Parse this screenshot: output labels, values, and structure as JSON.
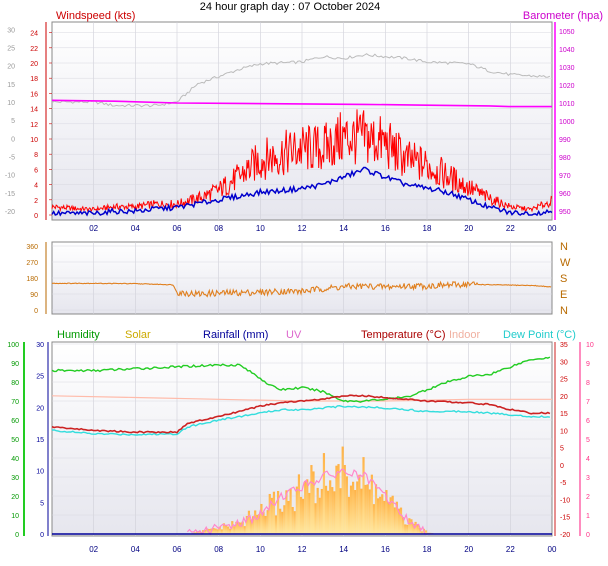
{
  "title": "24 hour graph day : 07 October 2024",
  "x_ticks": [
    "02",
    "04",
    "06",
    "08",
    "10",
    "12",
    "14",
    "16",
    "18",
    "20",
    "22",
    "00"
  ],
  "chart_data": [
    {
      "type": "line",
      "name": "wind-baro",
      "left_label": "Windspeed (kts)",
      "right_label": "Barometer (hpa)",
      "left_ticks_red": [
        "24",
        "22",
        "20",
        "18",
        "16",
        "14",
        "12",
        "10",
        "8",
        "6",
        "4",
        "2",
        "0"
      ],
      "left_ticks_gray": [
        "30",
        "25",
        "20",
        "15",
        "10",
        "5",
        "0",
        "-5",
        "-10",
        "-15",
        "-20"
      ],
      "right_ticks": [
        "1050",
        "1040",
        "1030",
        "1020",
        "1010",
        "1000",
        "990",
        "980",
        "970",
        "960",
        "950"
      ],
      "x_range_hours": [
        0,
        24
      ],
      "wind_ylim": [
        0,
        25
      ],
      "baro_ylim": [
        945,
        1055
      ],
      "gray_ylim": [
        -22.5,
        32
      ],
      "baro_hpa": [
        [
          0,
          1011.5
        ],
        [
          3,
          1011
        ],
        [
          6,
          1010
        ],
        [
          9,
          1009.8
        ],
        [
          12,
          1009.5
        ],
        [
          15,
          1009.2
        ],
        [
          18,
          1008.8
        ],
        [
          21,
          1008.4
        ],
        [
          22,
          1008
        ],
        [
          24,
          1008
        ]
      ],
      "gray_series": [
        [
          0,
          10
        ],
        [
          2,
          10
        ],
        [
          3,
          9
        ],
        [
          5,
          9
        ],
        [
          6,
          10
        ],
        [
          7,
          15
        ],
        [
          8,
          17
        ],
        [
          9,
          19
        ],
        [
          10,
          20.5
        ],
        [
          12,
          21
        ],
        [
          13,
          22.5
        ],
        [
          14,
          22
        ],
        [
          15,
          23
        ],
        [
          16,
          22.5
        ],
        [
          17,
          22
        ],
        [
          18,
          21
        ],
        [
          20,
          20.5
        ],
        [
          21,
          18.5
        ],
        [
          22,
          17.5
        ],
        [
          23.5,
          17
        ],
        [
          24,
          17
        ]
      ],
      "gust_envelope_kts": [
        [
          0,
          1.5
        ],
        [
          1,
          1.2
        ],
        [
          2,
          1
        ],
        [
          3,
          1.5
        ],
        [
          4,
          1.5
        ],
        [
          5,
          2
        ],
        [
          6,
          2
        ],
        [
          7,
          3
        ],
        [
          8,
          4.5
        ],
        [
          9,
          7
        ],
        [
          10,
          10
        ],
        [
          11,
          11
        ],
        [
          12,
          12
        ],
        [
          13,
          12
        ],
        [
          14,
          14
        ],
        [
          15,
          14
        ],
        [
          16,
          13
        ],
        [
          17,
          10
        ],
        [
          18,
          9
        ],
        [
          19,
          7
        ],
        [
          20,
          5
        ],
        [
          21,
          3
        ],
        [
          22,
          1.5
        ],
        [
          23,
          1
        ],
        [
          24,
          2.5
        ]
      ],
      "avg_wind_kts": [
        [
          0,
          0.2
        ],
        [
          1,
          0.2
        ],
        [
          2,
          0.2
        ],
        [
          3,
          0.5
        ],
        [
          4,
          0.5
        ],
        [
          5,
          0.8
        ],
        [
          6,
          1
        ],
        [
          7,
          1.5
        ],
        [
          8,
          2
        ],
        [
          9,
          2.5
        ],
        [
          10,
          3
        ],
        [
          11,
          3.2
        ],
        [
          12,
          3.5
        ],
        [
          13,
          4
        ],
        [
          14,
          5
        ],
        [
          15,
          6
        ],
        [
          16,
          5
        ],
        [
          17,
          4
        ],
        [
          18,
          3.5
        ],
        [
          19,
          3
        ],
        [
          20,
          2
        ],
        [
          21,
          1
        ],
        [
          22,
          0.3
        ],
        [
          23,
          0.2
        ],
        [
          24,
          0.5
        ]
      ]
    },
    {
      "type": "line",
      "name": "wind-direction",
      "left_ticks": [
        "360",
        "270",
        "180",
        "90",
        "0"
      ],
      "right_ticks": [
        "N",
        "W",
        "S",
        "E",
        "N"
      ],
      "ylim": [
        0,
        360
      ],
      "direction_deg": [
        [
          0,
          150
        ],
        [
          2,
          150
        ],
        [
          4,
          148
        ],
        [
          5.8,
          142
        ],
        [
          6,
          100
        ],
        [
          7,
          90
        ],
        [
          8,
          95
        ],
        [
          10,
          100
        ],
        [
          11,
          105
        ],
        [
          12,
          105
        ],
        [
          13,
          120
        ],
        [
          14,
          130
        ],
        [
          15,
          135
        ],
        [
          16,
          130
        ],
        [
          17,
          135
        ],
        [
          18,
          135
        ],
        [
          19,
          140
        ],
        [
          20,
          145
        ],
        [
          21,
          142
        ],
        [
          22,
          140
        ],
        [
          23,
          138
        ],
        [
          24,
          130
        ]
      ]
    },
    {
      "type": "line",
      "name": "temp-hum-rain",
      "legend": {
        "humidity": "Humidity",
        "solar": "Solar",
        "rainfall": "Rainfall (mm)",
        "uv": "UV",
        "temperature": "Temperature (°C)",
        "indoor": "Indoor",
        "dewpoint": "Dew Point (°C)"
      },
      "humidity_ticks": [
        "100",
        "90",
        "80",
        "70",
        "60",
        "50",
        "40",
        "30",
        "20",
        "10",
        "0"
      ],
      "rain_ticks": [
        "30",
        "25",
        "20",
        "15",
        "10",
        "5",
        "0"
      ],
      "rain_ticks_lower": [
        "30",
        "25",
        "20",
        "15",
        "10",
        "5",
        "0"
      ],
      "temp_ticks": [
        "35",
        "30",
        "25",
        "20",
        "15",
        "10",
        "5",
        "0",
        "-5",
        "-10",
        "-15",
        "-20"
      ],
      "uv_ticks": [
        "10",
        "9",
        "8",
        "7",
        "6",
        "5",
        "4",
        "3",
        "2",
        "1",
        "0"
      ],
      "temp_ylim": [
        -20,
        35
      ],
      "hum_ylim": [
        0,
        100
      ],
      "temperature_c": [
        [
          0,
          11
        ],
        [
          2,
          10
        ],
        [
          4,
          9.5
        ],
        [
          6,
          9.5
        ],
        [
          6.5,
          12
        ],
        [
          8,
          14
        ],
        [
          10,
          17
        ],
        [
          11,
          18
        ],
        [
          12,
          18.5
        ],
        [
          13,
          19
        ],
        [
          14,
          20
        ],
        [
          15,
          20
        ],
        [
          16,
          19.5
        ],
        [
          17,
          19
        ],
        [
          18,
          18.5
        ],
        [
          20,
          18
        ],
        [
          21,
          17.5
        ],
        [
          22,
          16
        ],
        [
          23,
          15
        ],
        [
          24,
          15
        ]
      ],
      "dewpoint_c": [
        [
          0,
          10
        ],
        [
          2,
          9
        ],
        [
          4,
          8.8
        ],
        [
          6,
          9
        ],
        [
          6.5,
          11
        ],
        [
          8,
          13
        ],
        [
          10,
          15
        ],
        [
          11,
          16
        ],
        [
          12,
          16
        ],
        [
          14,
          17
        ],
        [
          16,
          16.5
        ],
        [
          17,
          16
        ],
        [
          18,
          15.5
        ],
        [
          20,
          15.5
        ],
        [
          21,
          15
        ],
        [
          22,
          14.5
        ],
        [
          23,
          14
        ],
        [
          24,
          14
        ]
      ],
      "indoor_c": [
        [
          0,
          20
        ],
        [
          4,
          19.5
        ],
        [
          8,
          19
        ],
        [
          12,
          18.5
        ],
        [
          16,
          18.5
        ],
        [
          20,
          19
        ],
        [
          24,
          19
        ]
      ],
      "humidity_pct": [
        [
          0,
          86
        ],
        [
          2,
          86
        ],
        [
          4,
          87
        ],
        [
          6,
          88
        ],
        [
          8,
          89
        ],
        [
          9,
          89
        ],
        [
          10,
          82
        ],
        [
          10.5,
          78
        ],
        [
          11,
          76
        ],
        [
          12,
          77
        ],
        [
          13,
          75
        ],
        [
          14,
          70
        ],
        [
          15,
          70
        ],
        [
          16,
          71
        ],
        [
          17,
          72
        ],
        [
          18,
          76
        ],
        [
          19,
          80
        ],
        [
          20,
          83
        ],
        [
          21,
          84
        ],
        [
          22,
          88
        ],
        [
          23,
          92
        ],
        [
          24,
          93
        ]
      ],
      "solar_envelope_rain_units": [
        [
          6.5,
          0
        ],
        [
          7,
          0.5
        ],
        [
          8,
          1.5
        ],
        [
          9,
          2.5
        ],
        [
          10,
          5.5
        ],
        [
          11,
          8
        ],
        [
          12,
          10
        ],
        [
          13,
          13
        ],
        [
          14,
          14
        ],
        [
          15,
          12
        ],
        [
          16,
          8
        ],
        [
          17,
          3
        ],
        [
          18,
          0.3
        ],
        [
          18.5,
          0
        ]
      ],
      "uv_series": [
        [
          6.5,
          0
        ],
        [
          8,
          0.3
        ],
        [
          9,
          0.6
        ],
        [
          10,
          1
        ],
        [
          11,
          2
        ],
        [
          12,
          2.5
        ],
        [
          13,
          3
        ],
        [
          14,
          3.3
        ],
        [
          15,
          3
        ],
        [
          16,
          2
        ],
        [
          17,
          0.8
        ],
        [
          18,
          0
        ]
      ]
    }
  ],
  "colors": {
    "windspeed": "#ff0000",
    "avg_wind": "#0000cc",
    "baro": "#ff00ff",
    "gray": "#bbbbbb",
    "direction": "#e08020",
    "humidity": "#22cc22",
    "solar": "#ffcc66",
    "rainfall": "#000099",
    "uv": "#ff88cc",
    "temperature": "#cc2222",
    "indoor": "#ffbbaa",
    "dewpoint": "#33dddd",
    "dir_label": "#b86a00",
    "plot_bg_top": "#ffffff",
    "plot_bg_bottom": "#e9e9ef"
  }
}
